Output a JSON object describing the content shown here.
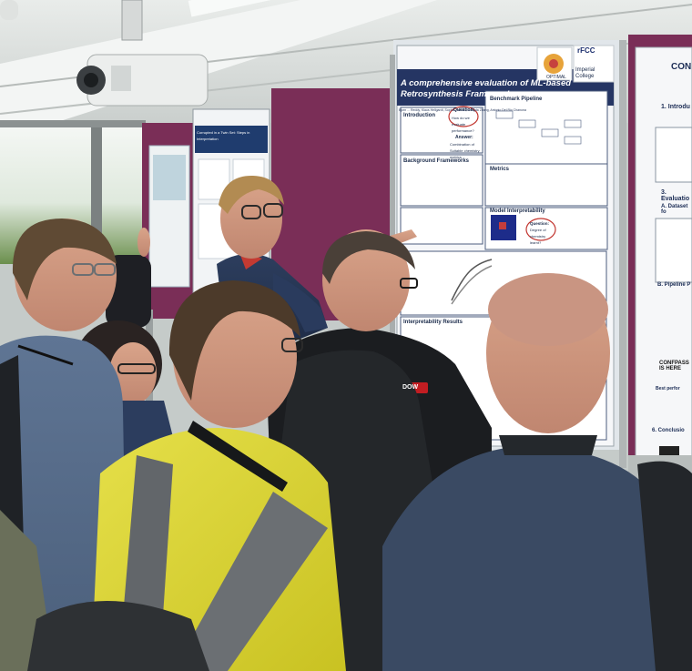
{
  "scene": {
    "description_free": true
  },
  "poster_main": {
    "title": "A comprehensive evaluation of ML-based Retrosynthesis Frameworks",
    "logo_left": "OPTIMAL",
    "logo_right": "Imperial College",
    "logo_top": "rFCC",
    "authors": "Bjorn ... Reddy, Klaus Hellgardt, Sophia Yaliraki, Dongda Zhang, Antonio Del Rio Chanona",
    "sec_introduction": "Introduction",
    "sec_question": "Question:",
    "sec_question_body": "How do we evaluate performance?",
    "sec_answer": "Answer:",
    "sec_answer_body": "Combination of Suitable chemistry metrics",
    "sec_benchmark": "Benchmark Pipeline",
    "sec_background": "Background Frameworks",
    "sec_metrics": "Metrics",
    "sec_model_interp": "Model Interpretability",
    "sec_question2": "Question:",
    "sec_question2_body": "Degree of chemistry learnt?",
    "sec_interp_results": "Interpretability Results"
  },
  "poster_right": {
    "title_fragment": "CON",
    "section1": "1. Introdu",
    "section3": "3. Evaluatio",
    "sectionA": "A. Dataset fo",
    "sectionB": "B. Pipeline P",
    "sectionHere": "CONFPASS IS HERE",
    "section6": "6. Conclusio",
    "best_perf": "Best perfor"
  },
  "poster_left": {
    "title": "Corrupted in a Twin Set: Steps in Interpretation"
  },
  "shirt_logo": {
    "text": "DOW"
  }
}
